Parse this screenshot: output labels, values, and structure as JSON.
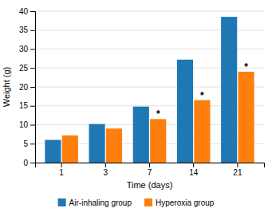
{
  "chart_data": {
    "type": "bar",
    "xlabel": "Time (days)",
    "ylabel": "Weight (g)",
    "categories": [
      "1",
      "3",
      "7",
      "14",
      "21"
    ],
    "series": [
      {
        "name": "Air-inhaling group",
        "values": [
          6.0,
          10.2,
          14.8,
          27.2,
          38.5
        ]
      },
      {
        "name": "Hyperoxia group",
        "values": [
          7.2,
          9.0,
          11.5,
          16.5,
          24.0
        ]
      }
    ],
    "ylim": [
      0,
      40
    ],
    "yticks": [
      0,
      5,
      10,
      15,
      20,
      25,
      30,
      35,
      40
    ],
    "grid": true,
    "legend": "bottom",
    "annotations": [
      {
        "text": "*",
        "category": "7",
        "series": "Hyperoxia group"
      },
      {
        "text": "*",
        "category": "14",
        "series": "Hyperoxia group"
      },
      {
        "text": "*",
        "category": "21",
        "series": "Hyperoxia group"
      }
    ]
  }
}
